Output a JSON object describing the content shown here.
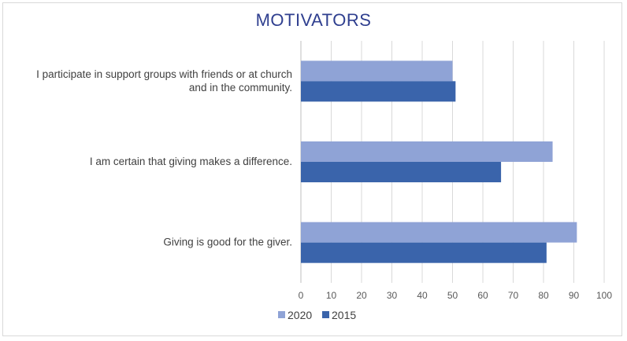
{
  "chart_data": {
    "type": "bar",
    "orientation": "horizontal",
    "title": "MOTIVATORS",
    "categories": [
      [
        "I participate in support groups with friends or at church",
        "and in the community."
      ],
      [
        "I am certain that giving makes a difference."
      ],
      [
        "Giving is good for the giver."
      ]
    ],
    "series": [
      {
        "name": "2020",
        "color": "#8fa3d6",
        "values": [
          50,
          83,
          91
        ]
      },
      {
        "name": "2015",
        "color": "#3a64ab",
        "values": [
          51,
          66,
          81
        ]
      }
    ],
    "xlim": [
      0,
      100
    ],
    "xticks": [
      0,
      10,
      20,
      30,
      40,
      50,
      60,
      70,
      80,
      90,
      100
    ],
    "grid": true,
    "legend_position": "bottom"
  }
}
